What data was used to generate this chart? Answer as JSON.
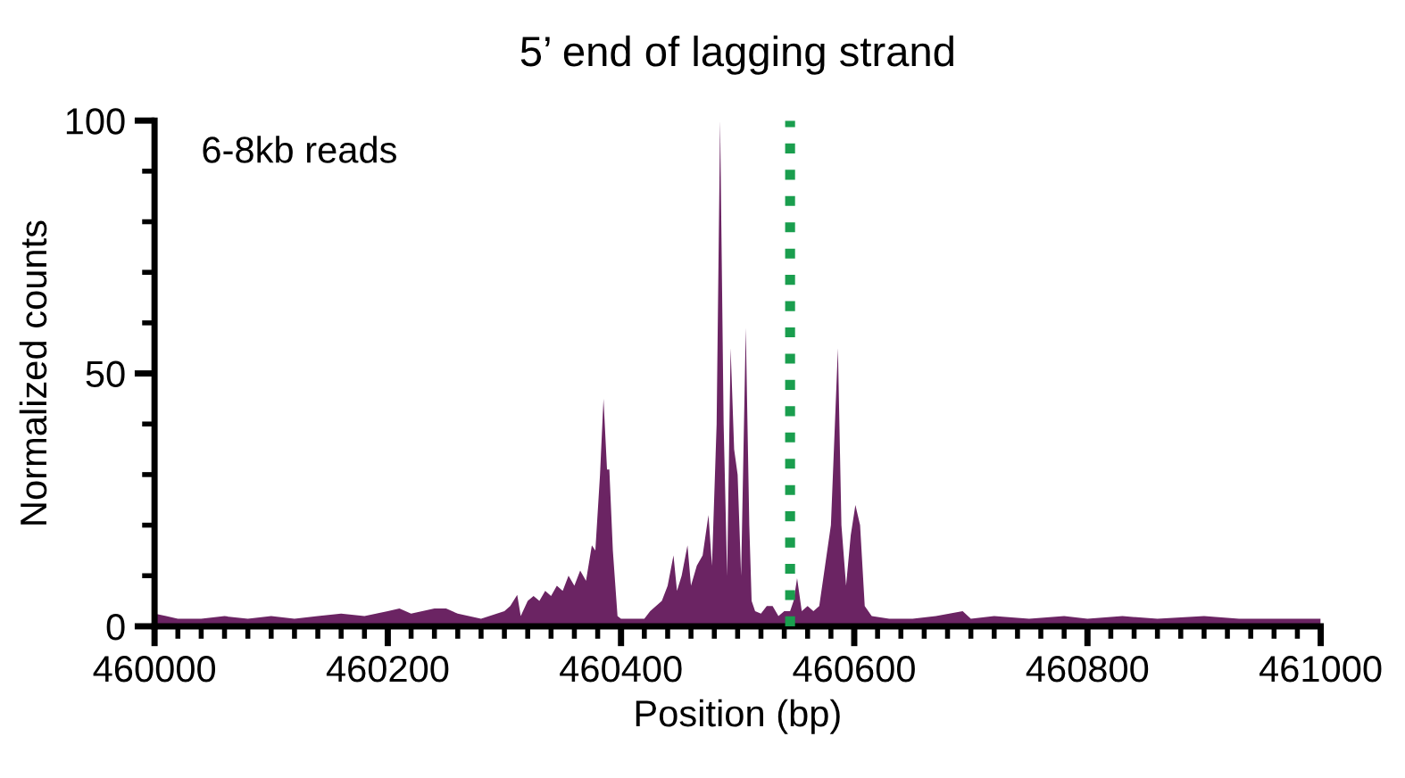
{
  "chart_data": {
    "type": "area",
    "title": "5’ end of lagging strand",
    "xlabel": "Position (bp)",
    "ylabel": "Normalized counts",
    "annotations": [
      "6-8kb reads"
    ],
    "xlim": [
      460000,
      461000
    ],
    "ylim": [
      0,
      100
    ],
    "xticks": [
      460000,
      {
        "value": 460020,
        "label": null
      },
      {
        "value": 460040,
        "label": null
      },
      {
        "value": 460060,
        "label": null
      },
      {
        "value": 460080,
        "label": null
      },
      {
        "value": 460100,
        "label": null
      },
      {
        "value": 460120,
        "label": null
      },
      {
        "value": 460140,
        "label": null
      },
      {
        "value": 460160,
        "label": null
      },
      {
        "value": 460180,
        "label": null
      },
      460200,
      {
        "value": 460220,
        "label": null
      },
      {
        "value": 460240,
        "label": null
      },
      {
        "value": 460260,
        "label": null
      },
      {
        "value": 460280,
        "label": null
      },
      {
        "value": 460300,
        "label": null
      },
      {
        "value": 460320,
        "label": null
      },
      {
        "value": 460340,
        "label": null
      },
      {
        "value": 460360,
        "label": null
      },
      {
        "value": 460380,
        "label": null
      },
      460400,
      {
        "value": 460420,
        "label": null
      },
      {
        "value": 460440,
        "label": null
      },
      {
        "value": 460460,
        "label": null
      },
      {
        "value": 460480,
        "label": null
      },
      {
        "value": 460500,
        "label": null
      },
      {
        "value": 460520,
        "label": null
      },
      {
        "value": 460540,
        "label": null
      },
      {
        "value": 460560,
        "label": null
      },
      {
        "value": 460580,
        "label": null
      },
      460600,
      {
        "value": 460620,
        "label": null
      },
      {
        "value": 460640,
        "label": null
      },
      {
        "value": 460660,
        "label": null
      },
      {
        "value": 460680,
        "label": null
      },
      {
        "value": 460700,
        "label": null
      },
      {
        "value": 460720,
        "label": null
      },
      {
        "value": 460740,
        "label": null
      },
      {
        "value": 460760,
        "label": null
      },
      {
        "value": 460780,
        "label": null
      },
      460800,
      {
        "value": 460820,
        "label": null
      },
      {
        "value": 460840,
        "label": null
      },
      {
        "value": 460860,
        "label": null
      },
      {
        "value": 460880,
        "label": null
      },
      {
        "value": 460900,
        "label": null
      },
      {
        "value": 460920,
        "label": null
      },
      {
        "value": 460940,
        "label": null
      },
      {
        "value": 460960,
        "label": null
      },
      {
        "value": 460980,
        "label": null
      },
      461000
    ],
    "yticks": [
      0,
      {
        "value": 10,
        "label": null
      },
      {
        "value": 20,
        "label": null
      },
      {
        "value": 30,
        "label": null
      },
      {
        "value": 40,
        "label": null
      },
      50,
      {
        "value": 60,
        "label": null
      },
      {
        "value": 70,
        "label": null
      },
      {
        "value": 80,
        "label": null
      },
      {
        "value": 90,
        "label": null
      },
      100
    ],
    "grid": false,
    "legend": false,
    "ref_lines": [
      {
        "axis": "x",
        "value": 460545,
        "label": null,
        "color": "#1a9e4e",
        "line_style": "dotted"
      }
    ],
    "series": [
      {
        "color": "#6b2463",
        "x": [
          460000,
          460010,
          460020,
          460040,
          460060,
          460080,
          460100,
          460120,
          460140,
          460160,
          460180,
          460200,
          460210,
          460220,
          460240,
          460250,
          460260,
          460280,
          460300,
          460305,
          460311,
          460314,
          460320,
          460325,
          460330,
          460335,
          460340,
          460345,
          460350,
          460355,
          460360,
          460365,
          460370,
          460375,
          460378,
          460382,
          460385,
          460388,
          460390,
          460393,
          460397,
          460400,
          460410,
          460420,
          460425,
          460430,
          460435,
          460440,
          460445,
          460448,
          460452,
          460457,
          460460,
          460465,
          460470,
          460475,
          460478,
          460482,
          460485,
          460488,
          460491,
          460494,
          460497,
          460500,
          460503,
          460507,
          460510,
          460512,
          460515,
          460520,
          460525,
          460530,
          460535,
          460540,
          460545,
          460548,
          460551,
          460555,
          460560,
          460565,
          460570,
          460575,
          460580,
          460586,
          460589,
          460593,
          460597,
          460601,
          460605,
          460609,
          460615,
          460630,
          460650,
          460670,
          460693,
          460700,
          460720,
          460750,
          460780,
          460800,
          460830,
          460860,
          460900,
          460930,
          460960,
          461000
        ],
        "values": [
          2.5,
          2,
          1.5,
          1.5,
          2,
          1.5,
          2,
          1.5,
          2,
          2.5,
          2,
          3,
          3.5,
          2.5,
          3.5,
          3.5,
          2.5,
          1.5,
          3,
          4,
          6.2,
          2,
          5,
          6,
          5,
          7,
          6,
          8,
          7,
          10,
          8,
          11,
          9,
          16,
          15,
          30,
          45,
          31,
          31,
          15,
          2,
          1.5,
          1.5,
          1.5,
          3,
          4,
          5,
          8,
          14,
          7,
          10,
          16,
          8,
          12,
          14,
          22,
          12,
          40,
          100,
          40,
          10,
          55,
          35,
          30,
          10,
          59,
          20,
          5,
          3,
          2.5,
          4,
          4,
          2,
          3,
          3,
          5,
          9.5,
          3,
          4,
          3,
          4,
          12,
          20,
          55,
          20,
          8,
          18,
          24,
          20,
          4,
          2,
          1.5,
          1.5,
          2,
          3,
          1.5,
          2,
          1.5,
          2,
          1.5,
          2,
          1.5,
          2,
          1.5,
          1.5,
          1.5
        ]
      }
    ]
  }
}
